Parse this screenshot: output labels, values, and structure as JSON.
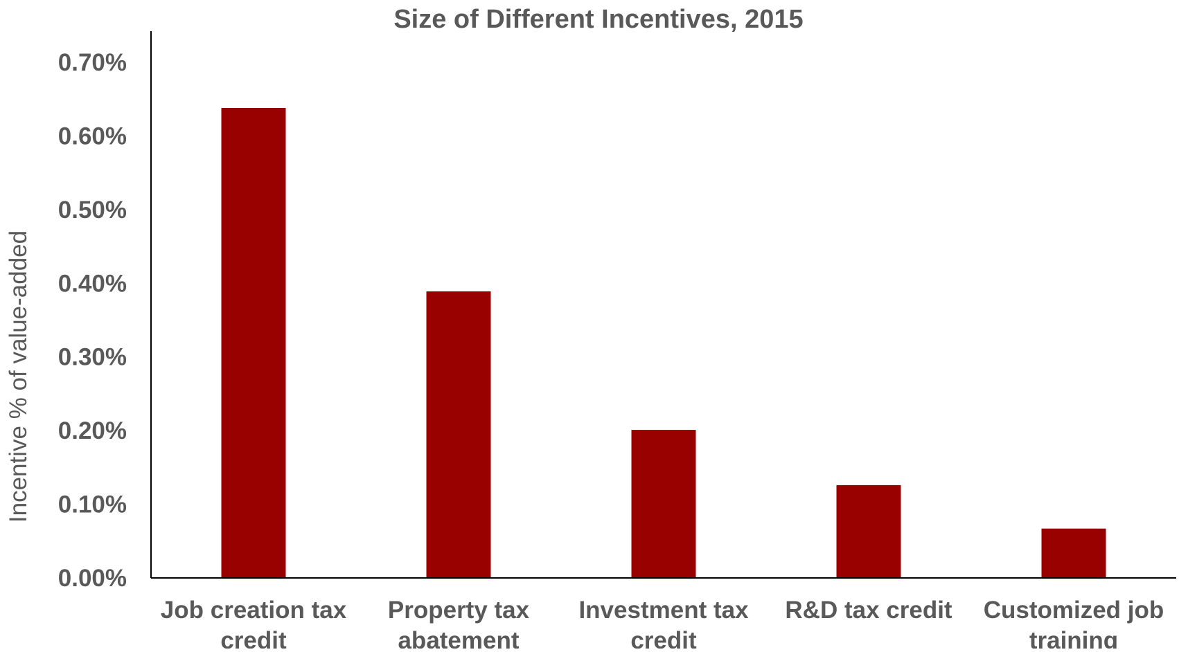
{
  "chart_data": {
    "type": "bar",
    "title": "Size of Different Incentives, 2015",
    "xlabel": "",
    "ylabel": "Incentive % of value-added",
    "categories": [
      [
        "Job creation tax",
        "credit"
      ],
      [
        "Property tax",
        "abatement"
      ],
      [
        "Investment tax",
        "credit"
      ],
      [
        "R&D tax credit"
      ],
      [
        "Customized job",
        "training"
      ]
    ],
    "values": [
      0.638,
      0.389,
      0.201,
      0.126,
      0.067
    ],
    "ylim": [
      0,
      0.7
    ],
    "yticks": [
      "0.00%",
      "0.10%",
      "0.20%",
      "0.30%",
      "0.40%",
      "0.50%",
      "0.60%",
      "0.70%"
    ],
    "grid": false,
    "legend": "none",
    "bar_color": "#990000"
  }
}
